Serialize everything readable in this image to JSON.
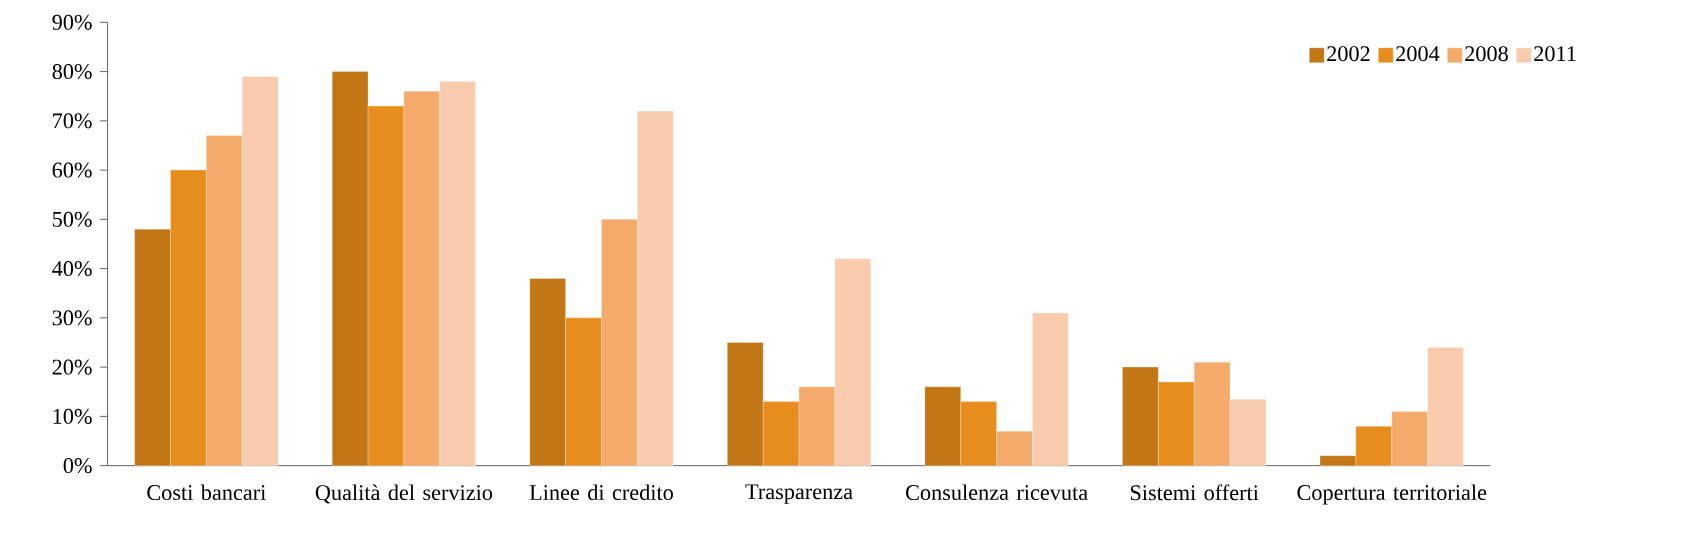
{
  "chart_data": {
    "type": "bar",
    "categories": [
      "Costi bancari",
      "Qualità del servizio",
      "Linee di credito",
      "Trasparenza",
      "Consulenza ricevuta",
      "Sistemi offerti",
      "Copertura territoriale"
    ],
    "series": [
      {
        "name": "2002",
        "color": "#c27615",
        "values": [
          48,
          80,
          38,
          25,
          16,
          20,
          2
        ]
      },
      {
        "name": "2004",
        "color": "#e78d1d",
        "values": [
          60,
          73,
          30,
          13,
          13,
          17,
          8
        ]
      },
      {
        "name": "2008",
        "color": "#f4aa6a",
        "values": [
          67,
          76,
          50,
          16,
          7,
          21,
          11
        ]
      },
      {
        "name": "2011",
        "color": "#f8cbad",
        "values": [
          79,
          78,
          72,
          42,
          31,
          13.5,
          24
        ]
      }
    ],
    "ylim": [
      0,
      90
    ],
    "yticks": [
      {
        "value": 0,
        "label": "0%"
      },
      {
        "value": 10,
        "label": "10%"
      },
      {
        "value": 20,
        "label": "20%"
      },
      {
        "value": 30,
        "label": "30%"
      },
      {
        "value": 40,
        "label": "40%"
      },
      {
        "value": 50,
        "label": "50%"
      },
      {
        "value": 60,
        "label": "60%"
      },
      {
        "value": 70,
        "label": "70%"
      },
      {
        "value": 80,
        "label": "80%"
      },
      {
        "value": 90,
        "label": "90%"
      }
    ],
    "legend": "top right",
    "grid": false
  }
}
